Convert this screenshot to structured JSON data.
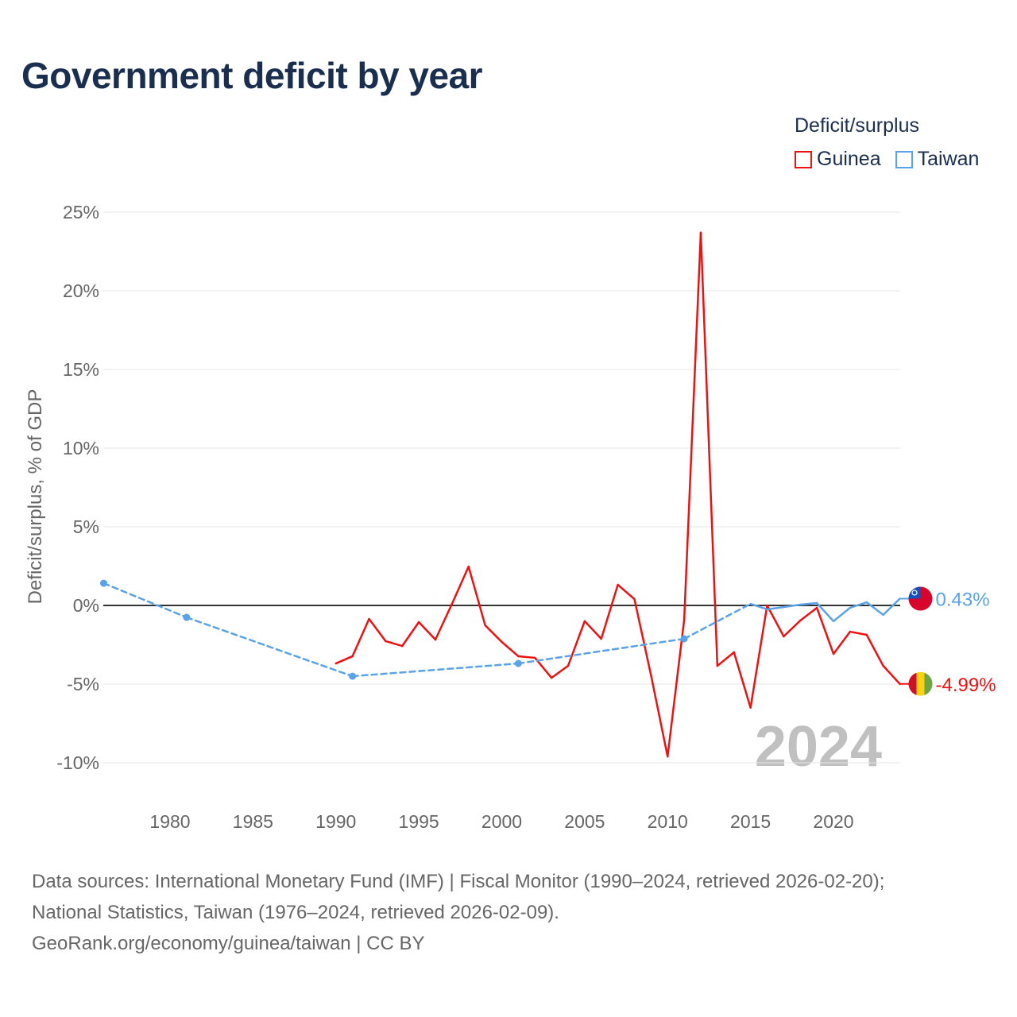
{
  "title": "Government deficit by year",
  "legend": {
    "title": "Deficit/surplus",
    "items": [
      {
        "label": "Guinea",
        "color": "#ee1111"
      },
      {
        "label": "Taiwan",
        "color": "#5aa3e8"
      }
    ]
  },
  "footer": {
    "line1": "Data sources: International Monetary Fund (IMF) | Fiscal Monitor (1990–2024, retrieved 2026-02-20);",
    "line2": "National Statistics, Taiwan (1976–2024, retrieved 2026-02-09).",
    "line3": "GeoRank.org/economy/guinea/taiwan | CC BY"
  },
  "chart_data": {
    "type": "line",
    "title": "Government deficit by year",
    "xlabel": "",
    "ylabel": "Deficit/surplus, % of GDP",
    "xlim": [
      1976,
      2024
    ],
    "ylim": [
      -12,
      25
    ],
    "x_ticks": [
      1980,
      1985,
      1990,
      1995,
      2000,
      2005,
      2010,
      2015,
      2020
    ],
    "y_ticks": [
      {
        "v": 25,
        "label": "25%"
      },
      {
        "v": 20,
        "label": "20%"
      },
      {
        "v": 15,
        "label": "15%"
      },
      {
        "v": 10,
        "label": "10%"
      },
      {
        "v": 5,
        "label": "5%"
      },
      {
        "v": 0,
        "label": "0%"
      },
      {
        "v": -5,
        "label": "-5%"
      },
      {
        "v": -10,
        "label": "-10%"
      }
    ],
    "watermark_year": "2024",
    "series": [
      {
        "name": "Guinea",
        "color": "#ee1111",
        "end_label": "-4.99%",
        "x": [
          1990,
          1991,
          1992,
          1993,
          1994,
          1995,
          1996,
          1997,
          1998,
          1999,
          2000,
          2001,
          2002,
          2003,
          2004,
          2005,
          2006,
          2007,
          2008,
          2009,
          2010,
          2011,
          2012,
          2013,
          2014,
          2015,
          2016,
          2017,
          2018,
          2019,
          2020,
          2021,
          2022,
          2023,
          2024
        ],
        "y": [
          -3.69,
          -3.23,
          -0.86,
          -2.27,
          -2.58,
          -1.06,
          -2.17,
          0.1,
          2.47,
          -1.26,
          -2.32,
          -3.23,
          -3.33,
          -4.6,
          -3.84,
          -1.0,
          -2.12,
          1.31,
          0.4,
          -4.44,
          -9.6,
          -0.9,
          23.7,
          -3.84,
          -2.98,
          -6.5,
          0.0,
          -1.97,
          -0.96,
          -0.15,
          -3.08,
          -1.67,
          -1.87,
          -3.84,
          -4.99
        ]
      },
      {
        "name": "Taiwan",
        "color": "#5aa3e8",
        "end_label": "0.43%",
        "x": [
          1976,
          1981,
          1991,
          2001,
          2011,
          2015,
          2016,
          2017,
          2018,
          2019,
          2020,
          2021,
          2022,
          2023,
          2024
        ],
        "y": [
          1.41,
          -0.76,
          -4.5,
          -3.69,
          -2.12,
          0.1,
          -0.25,
          -0.1,
          0.05,
          0.15,
          -1.0,
          -0.15,
          0.2,
          -0.6,
          0.43
        ]
      }
    ]
  }
}
